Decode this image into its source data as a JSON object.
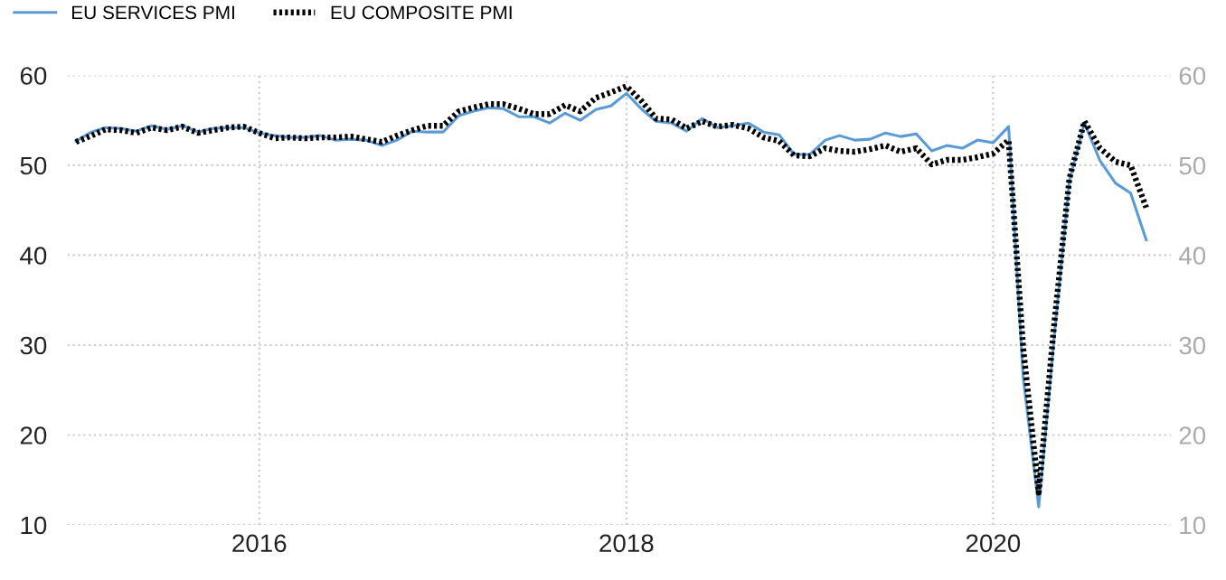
{
  "chart_data": {
    "type": "line",
    "x": [
      "2015-01",
      "2015-02",
      "2015-03",
      "2015-04",
      "2015-05",
      "2015-06",
      "2015-07",
      "2015-08",
      "2015-09",
      "2015-10",
      "2015-11",
      "2015-12",
      "2016-01",
      "2016-02",
      "2016-03",
      "2016-04",
      "2016-05",
      "2016-06",
      "2016-07",
      "2016-08",
      "2016-09",
      "2016-10",
      "2016-11",
      "2016-12",
      "2017-01",
      "2017-02",
      "2017-03",
      "2017-04",
      "2017-05",
      "2017-06",
      "2017-07",
      "2017-08",
      "2017-09",
      "2017-10",
      "2017-11",
      "2017-12",
      "2018-01",
      "2018-02",
      "2018-03",
      "2018-04",
      "2018-05",
      "2018-06",
      "2018-07",
      "2018-08",
      "2018-09",
      "2018-10",
      "2018-11",
      "2018-12",
      "2019-01",
      "2019-02",
      "2019-03",
      "2019-04",
      "2019-05",
      "2019-06",
      "2019-07",
      "2019-08",
      "2019-09",
      "2019-10",
      "2019-11",
      "2019-12",
      "2020-01",
      "2020-02",
      "2020-03",
      "2020-04",
      "2020-05",
      "2020-06",
      "2020-07",
      "2020-08",
      "2020-09",
      "2020-10",
      "2020-11"
    ],
    "series": [
      {
        "name": "EU SERVICES PMI",
        "color": "#5b9bd5",
        "line_style": "solid",
        "values": [
          52.7,
          53.7,
          54.2,
          54.1,
          53.8,
          54.4,
          54.0,
          54.4,
          53.7,
          54.1,
          54.2,
          54.2,
          53.6,
          53.3,
          53.1,
          53.1,
          53.3,
          52.8,
          52.9,
          52.8,
          52.2,
          52.8,
          53.8,
          53.7,
          53.7,
          55.5,
          56.0,
          56.4,
          56.3,
          55.4,
          55.4,
          54.7,
          55.8,
          55.0,
          56.2,
          56.6,
          58.0,
          56.2,
          54.9,
          54.7,
          53.8,
          55.2,
          54.2,
          54.4,
          54.7,
          53.7,
          53.4,
          51.2,
          51.2,
          52.8,
          53.3,
          52.8,
          52.9,
          53.6,
          53.2,
          53.5,
          51.6,
          52.2,
          51.9,
          52.8,
          52.5,
          54.3,
          26.4,
          12.0,
          30.5,
          48.3,
          54.7,
          50.5,
          48.0,
          46.9,
          41.7
        ]
      },
      {
        "name": "EU COMPOSITE PMI",
        "color": "#000000",
        "line_style": "dotted",
        "values": [
          52.6,
          53.3,
          54.0,
          53.9,
          53.6,
          54.2,
          53.9,
          54.3,
          53.6,
          53.9,
          54.2,
          54.3,
          53.6,
          53.0,
          53.1,
          53.0,
          53.1,
          53.1,
          53.2,
          52.9,
          52.6,
          53.3,
          53.9,
          54.4,
          54.4,
          56.0,
          56.4,
          56.8,
          56.8,
          56.3,
          55.7,
          55.7,
          56.7,
          56.0,
          57.5,
          58.1,
          58.8,
          57.1,
          55.2,
          55.1,
          54.1,
          54.9,
          54.3,
          54.5,
          54.1,
          53.1,
          52.7,
          51.1,
          51.0,
          51.9,
          51.6,
          51.5,
          51.8,
          52.2,
          51.5,
          51.9,
          50.1,
          50.6,
          50.6,
          50.9,
          51.3,
          52.8,
          29.7,
          13.6,
          31.9,
          48.5,
          54.9,
          51.9,
          50.4,
          50.0,
          45.3
        ]
      }
    ],
    "xlim": [
      "2014-12-15",
      "2020-12-20"
    ],
    "xticks": [
      "2016",
      "2018",
      "2020"
    ],
    "ylim": [
      10,
      60
    ],
    "yticks": [
      10,
      20,
      30,
      40,
      50,
      60
    ],
    "y2lim": [
      10,
      60
    ],
    "y2ticks": [
      10,
      20,
      30,
      40,
      50,
      60
    ],
    "grid": true,
    "legend": "top left",
    "marker": "none"
  }
}
